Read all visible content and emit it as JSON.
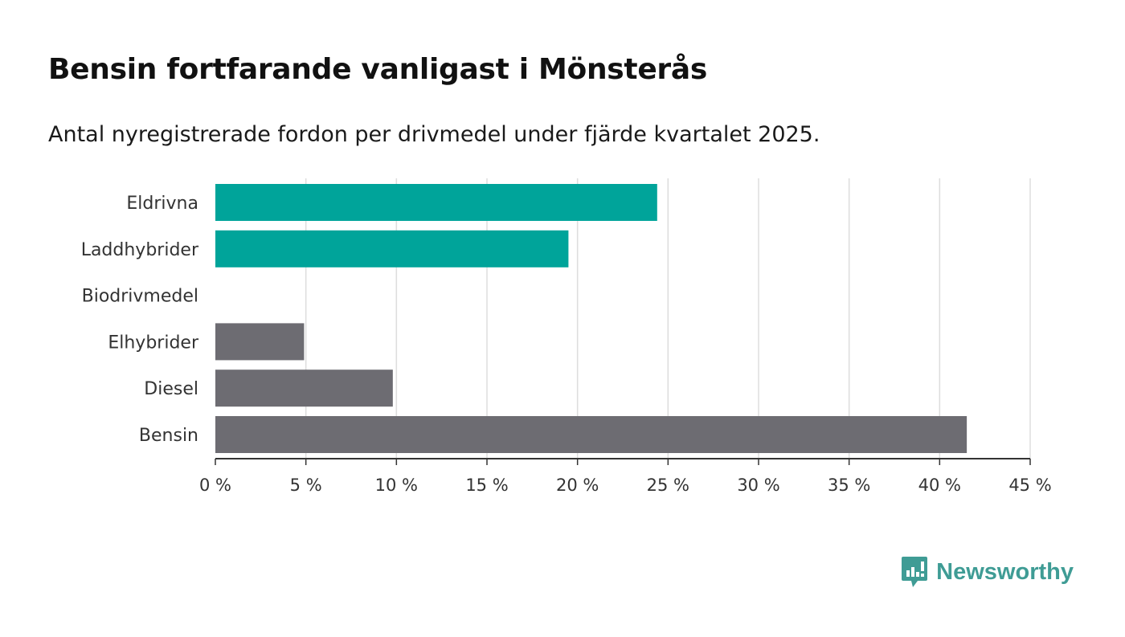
{
  "title": "Bensin fortfarande vanligast i Mönsterås",
  "subtitle": "Antal nyregistrerade fordon per drivmedel under fjärde kvartalet 2025.",
  "brand": {
    "name": "Newsworthy",
    "icon": "newsworthy-logo-icon",
    "color": "#3f9c95"
  },
  "chart_data": {
    "type": "bar",
    "orientation": "horizontal",
    "categories": [
      "Eldrivna",
      "Laddhybrider",
      "Biodrivmedel",
      "Elhybrider",
      "Diesel",
      "Bensin"
    ],
    "values": [
      24.4,
      19.5,
      0,
      4.9,
      9.8,
      41.5
    ],
    "colors": [
      "#00a49a",
      "#00a49a",
      "#00a49a",
      "#6d6c72",
      "#6d6c72",
      "#6d6c72"
    ],
    "xlim": [
      0,
      45
    ],
    "ticks": [
      0,
      5,
      10,
      15,
      20,
      25,
      30,
      35,
      40,
      45
    ],
    "tick_labels": [
      "0 %",
      "5 %",
      "10 %",
      "15 %",
      "20 %",
      "25 %",
      "30 %",
      "35 %",
      "40 %",
      "45 %"
    ],
    "xlabel": "",
    "ylabel": "",
    "grid": true
  }
}
